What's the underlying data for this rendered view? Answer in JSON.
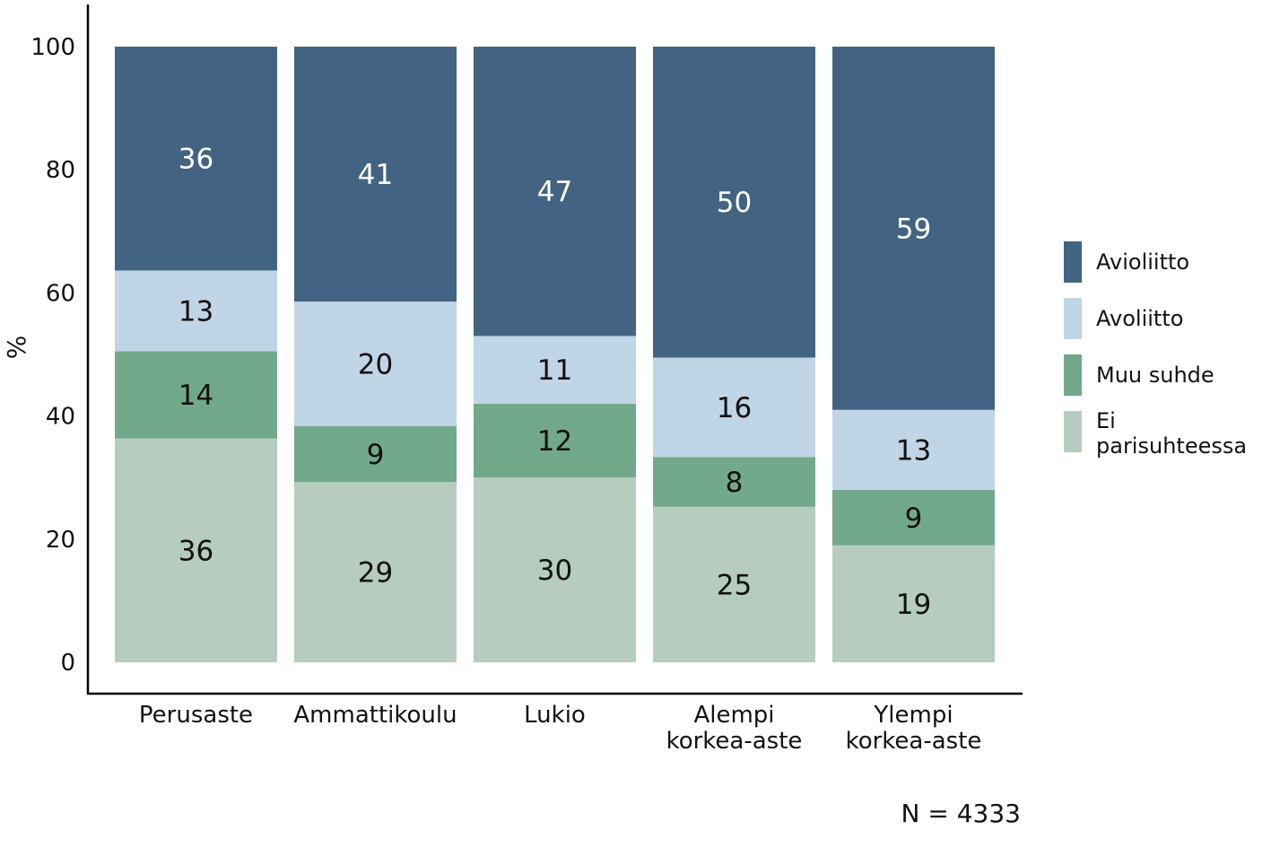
{
  "chart_data": {
    "type": "bar",
    "stacked": true,
    "categories": [
      [
        "Perusaste"
      ],
      [
        "Ammattikoulu"
      ],
      [
        "Lukio"
      ],
      [
        "Alempi",
        "korkea-aste"
      ],
      [
        "Ylempi",
        "korkea-aste"
      ]
    ],
    "series": [
      {
        "name": "Ei parisuhteessa",
        "legend_lines": [
          "Ei",
          "parisuhteessa"
        ],
        "color": "#b5ccbe",
        "label_color": "#111111",
        "values": [
          36,
          29,
          30,
          25,
          19
        ]
      },
      {
        "name": "Muu suhde",
        "legend_lines": [
          "Muu suhde"
        ],
        "color": "#72a98a",
        "label_color": "#111111",
        "values": [
          14,
          9,
          12,
          8,
          9
        ]
      },
      {
        "name": "Avoliitto",
        "legend_lines": [
          "Avoliitto"
        ],
        "color": "#c0d5e6",
        "label_color": "#111111",
        "values": [
          13,
          20,
          11,
          16,
          13
        ]
      },
      {
        "name": "Avioliitto",
        "legend_lines": [
          "Avioliitto"
        ],
        "color": "#426482",
        "label_color": "#ffffff",
        "values": [
          36,
          41,
          47,
          50,
          59
        ]
      }
    ],
    "legend_order": [
      "Avioliitto",
      "Avoliitto",
      "Muu suhde",
      "Ei parisuhteessa"
    ],
    "yticks": [
      0,
      20,
      40,
      60,
      80,
      100
    ],
    "ylim": [
      0,
      100
    ],
    "ylabel": "%",
    "xlabel": "",
    "title": "",
    "legend_position": "right",
    "grid": false,
    "note": "N = 4333"
  }
}
